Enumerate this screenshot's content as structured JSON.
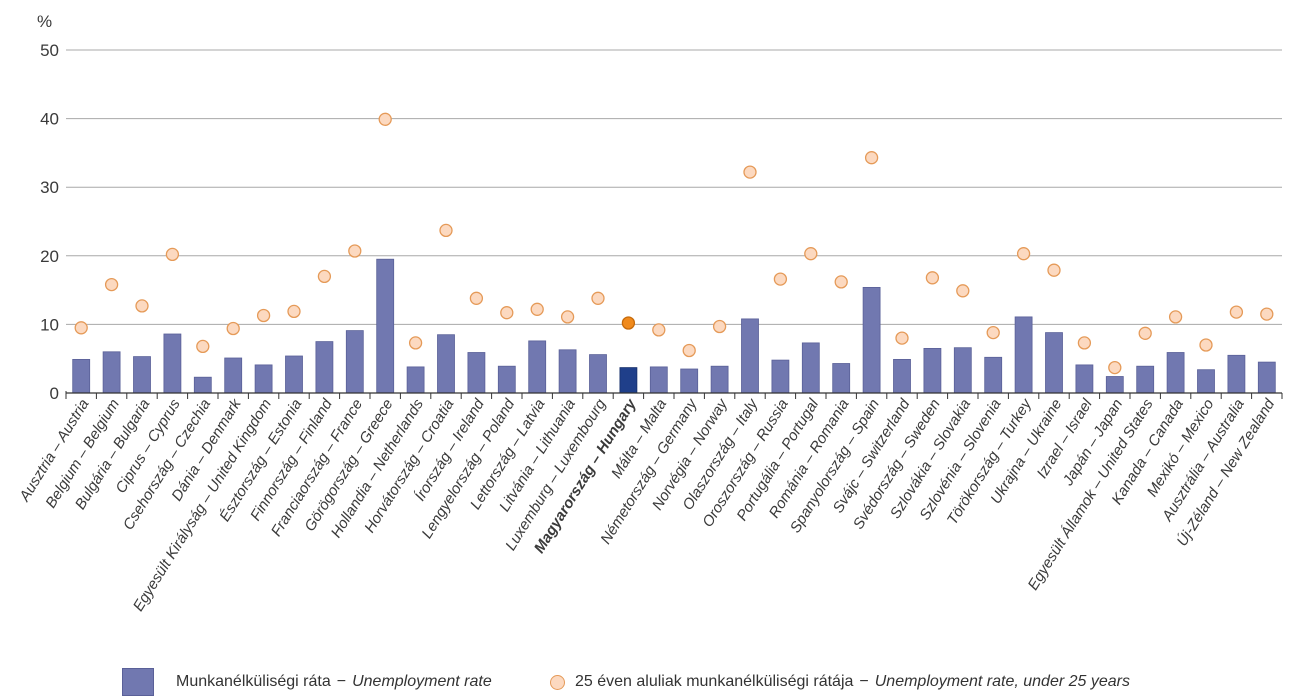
{
  "chart_data": {
    "type": "bar",
    "unit_label": "%",
    "ylim": [
      0,
      50
    ],
    "yticks": [
      0,
      10,
      20,
      30,
      40,
      50
    ],
    "grid": true,
    "highlight_category": "Magyarország – Hungary",
    "categories": [
      "Ausztria – Austria",
      "Belgium – Belgium",
      "Bulgária – Bulgaria",
      "Ciprus – Cyprus",
      "Csehország – Czechia",
      "Dánia – Denmark",
      "Egyesült Királyság – United Kingdom",
      "Észtország – Estonia",
      "Finnország – Finland",
      "Franciaország – France",
      "Görögország – Greece",
      "Hollandia – Netherlands",
      "Horvátország – Croatia",
      "Írország – Ireland",
      "Lengyelország – Poland",
      "Lettország – Latvia",
      "Litvánia – Lithuania",
      "Luxemburg – Luxembourg",
      "Magyarország – Hungary",
      "Málta – Malta",
      "Németország – Germany",
      "Norvégia – Norway",
      "Olaszország – Italy",
      "Oroszország – Russia",
      "Portugália – Portugal",
      "Románia – Romania",
      "Spanyolország – Spain",
      "Svájc – Switzerland",
      "Svédország – Sweden",
      "Szlovákia – Slovakia",
      "Szlovénia – Slovenia",
      "Törökország – Turkey",
      "Ukrajna – Ukraine",
      "Izrael – Israel",
      "Japán – Japan",
      "Egyesült Államok – United States",
      "Kanada – Canada",
      "Mexikó – Mexico",
      "Ausztrália – Australia",
      "Új-Zéland – New Zealand"
    ],
    "series": [
      {
        "name": "Munkanélküliségi ráta – Unemployment rate",
        "kind": "bar",
        "color": "#7178b0",
        "highlight_color": "#1f3f8a",
        "values": [
          4.9,
          6.0,
          5.3,
          8.6,
          2.3,
          5.1,
          4.1,
          5.4,
          7.5,
          9.1,
          19.5,
          3.8,
          8.5,
          5.9,
          3.9,
          7.6,
          6.3,
          5.6,
          3.7,
          3.8,
          3.5,
          3.9,
          10.8,
          4.8,
          7.3,
          4.3,
          15.4,
          4.9,
          6.5,
          6.6,
          5.2,
          11.1,
          8.8,
          4.1,
          2.4,
          3.9,
          5.9,
          3.4,
          5.5,
          4.5
        ]
      },
      {
        "name": "25 éven aluliak munkanélküliségi rátája – Unemployment rate, under 25 years",
        "kind": "scatter",
        "color": "#fcd9c0",
        "edge_color": "#e59a58",
        "highlight_color": "#f08a1c",
        "values": [
          9.5,
          15.8,
          12.7,
          20.2,
          6.8,
          9.4,
          11.3,
          11.9,
          17.0,
          20.7,
          39.9,
          7.3,
          23.7,
          13.8,
          11.7,
          12.2,
          11.1,
          13.8,
          10.2,
          9.2,
          6.2,
          9.7,
          32.2,
          16.6,
          20.3,
          16.2,
          34.3,
          8.0,
          16.8,
          14.9,
          8.8,
          20.3,
          17.9,
          7.3,
          3.7,
          8.7,
          11.1,
          7.0,
          11.8,
          11.5
        ]
      }
    ]
  },
  "legend": {
    "bar_hu": "Munkanélküliségi ráta",
    "bar_en": "Unemployment rate",
    "dot_hu": "25 éven aluliak munkanélküliségi rátája",
    "dot_en": "Unemployment rate, under 25 years",
    "separator": "−"
  }
}
